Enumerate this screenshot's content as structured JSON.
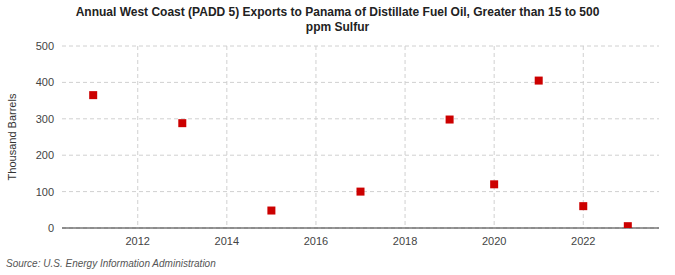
{
  "chart_data": {
    "type": "scatter",
    "title": "Annual West Coast (PADD 5) Exports to Panama of Distillate Fuel Oil, Greater than 15 to 500\nppm Sulfur",
    "y_label": "Thousand Barrels",
    "annotations": [
      "Source: U.S. Energy Information Administration"
    ],
    "x": [
      2011,
      2013,
      2015,
      2017,
      2019,
      2020,
      2021,
      2022,
      2023
    ],
    "values": [
      365,
      288,
      48,
      100,
      298,
      120,
      405,
      60,
      5
    ],
    "color": "#cc0000",
    "marker": "square",
    "xlim": [
      2010.3,
      2023.7
    ],
    "ylim": [
      0,
      500
    ],
    "xticks": [
      2012,
      2014,
      2016,
      2018,
      2020,
      2022
    ],
    "yticks": [
      0,
      100,
      200,
      300,
      400,
      500
    ],
    "grid": true
  }
}
